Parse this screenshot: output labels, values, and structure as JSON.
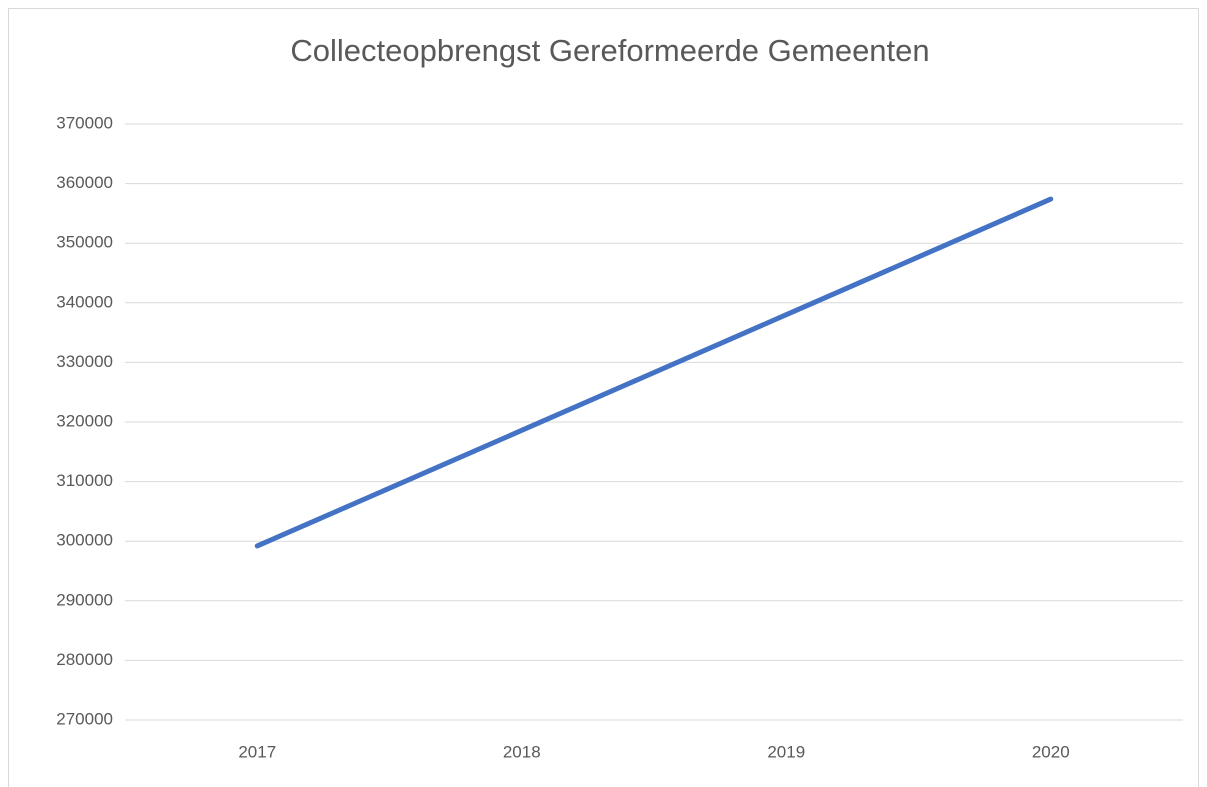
{
  "chart_data": {
    "type": "line",
    "title": "Collecteopbrengst Gereformeerde Gemeenten",
    "categories": [
      "2017",
      "2018",
      "2019",
      "2020"
    ],
    "values": [
      299200,
      318600,
      338000,
      357400
    ],
    "color": "#4472c4",
    "ylim": [
      270000,
      370000
    ],
    "yticks": [
      270000,
      280000,
      290000,
      300000,
      310000,
      320000,
      330000,
      340000,
      350000,
      360000,
      370000
    ],
    "grid": true
  }
}
